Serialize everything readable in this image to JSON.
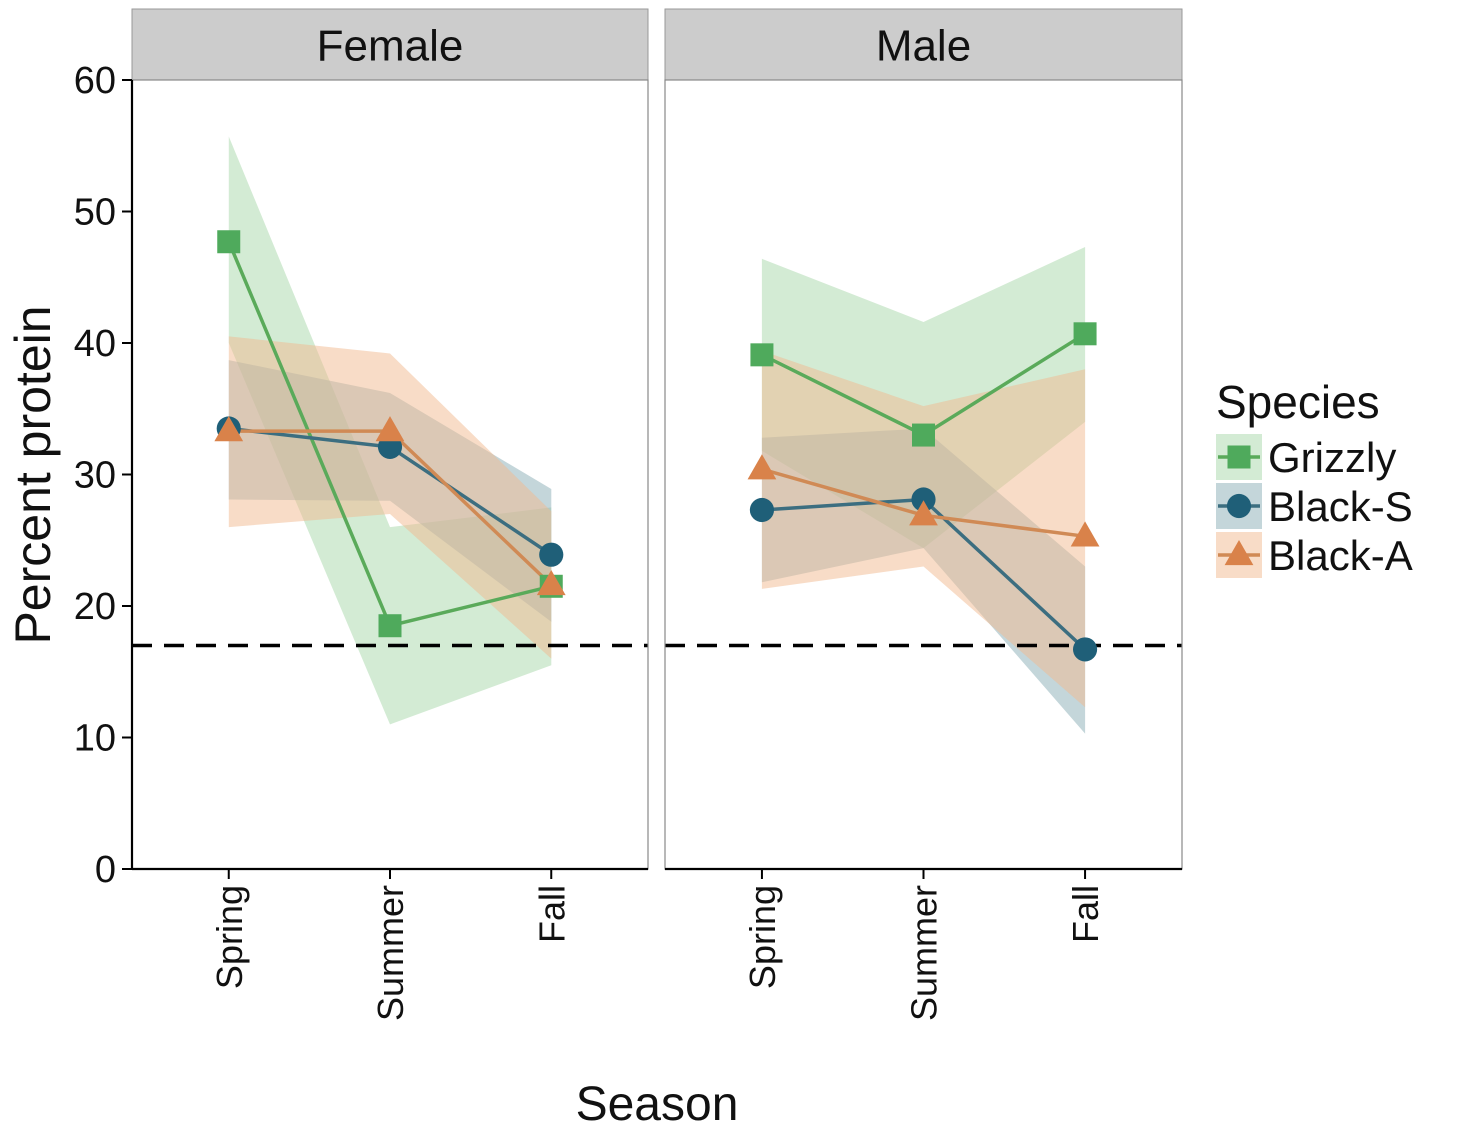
{
  "chart_data": {
    "type": "line",
    "xlabel": "Season",
    "ylabel": "Percent protein",
    "categories": [
      "Spring",
      "Summer",
      "Fall"
    ],
    "ylim": [
      0,
      60
    ],
    "yticks": [
      0,
      10,
      20,
      30,
      40,
      50,
      60
    ],
    "reference_line": {
      "y": 17,
      "style": "dashed",
      "color": "#000000"
    },
    "grid": false,
    "legend": {
      "title": "Species",
      "placement": "right",
      "entries": [
        "Grizzly",
        "Black-S",
        "Black-A"
      ]
    },
    "species_styles": [
      {
        "name": "Grizzly",
        "marker": "square",
        "line_color": "#5aaa5a",
        "marker_color": "#4faa5c",
        "band_color": "#a8d8aa"
      },
      {
        "name": "Black-S",
        "marker": "circle",
        "line_color": "#3c6e80",
        "marker_color": "#1f5f78",
        "band_color": "#8aaeb6"
      },
      {
        "name": "Black-A",
        "marker": "triangle",
        "line_color": "#d08a55",
        "marker_color": "#d9824a",
        "band_color": "#f2b990"
      }
    ],
    "panels": [
      {
        "facet": "Female",
        "series": [
          {
            "name": "Grizzly",
            "values": [
              47.7,
              18.5,
              21.5
            ],
            "lower": [
              40.0,
              11.0,
              15.5
            ],
            "upper": [
              55.7,
              26.0,
              27.5
            ]
          },
          {
            "name": "Black-S",
            "values": [
              33.5,
              32.1,
              23.9
            ],
            "lower": [
              28.1,
              28.0,
              18.8
            ],
            "upper": [
              38.7,
              36.2,
              28.9
            ]
          },
          {
            "name": "Black-A",
            "values": [
              33.3,
              33.3,
              21.6
            ],
            "lower": [
              26.0,
              27.0,
              16.0
            ],
            "upper": [
              40.5,
              39.2,
              27.2
            ]
          }
        ]
      },
      {
        "facet": "Male",
        "series": [
          {
            "name": "Grizzly",
            "values": [
              39.1,
              33.0,
              40.7
            ],
            "lower": [
              31.8,
              24.4,
              34.0
            ],
            "upper": [
              46.4,
              41.6,
              47.3
            ]
          },
          {
            "name": "Black-S",
            "values": [
              27.3,
              28.1,
              16.7
            ],
            "lower": [
              21.8,
              24.4,
              10.3
            ],
            "upper": [
              32.8,
              33.5,
              23.0
            ]
          },
          {
            "name": "Black-A",
            "values": [
              30.4,
              26.9,
              25.3
            ],
            "lower": [
              21.3,
              23.0,
              12.3
            ],
            "upper": [
              39.4,
              35.2,
              38.0
            ]
          }
        ]
      }
    ]
  }
}
